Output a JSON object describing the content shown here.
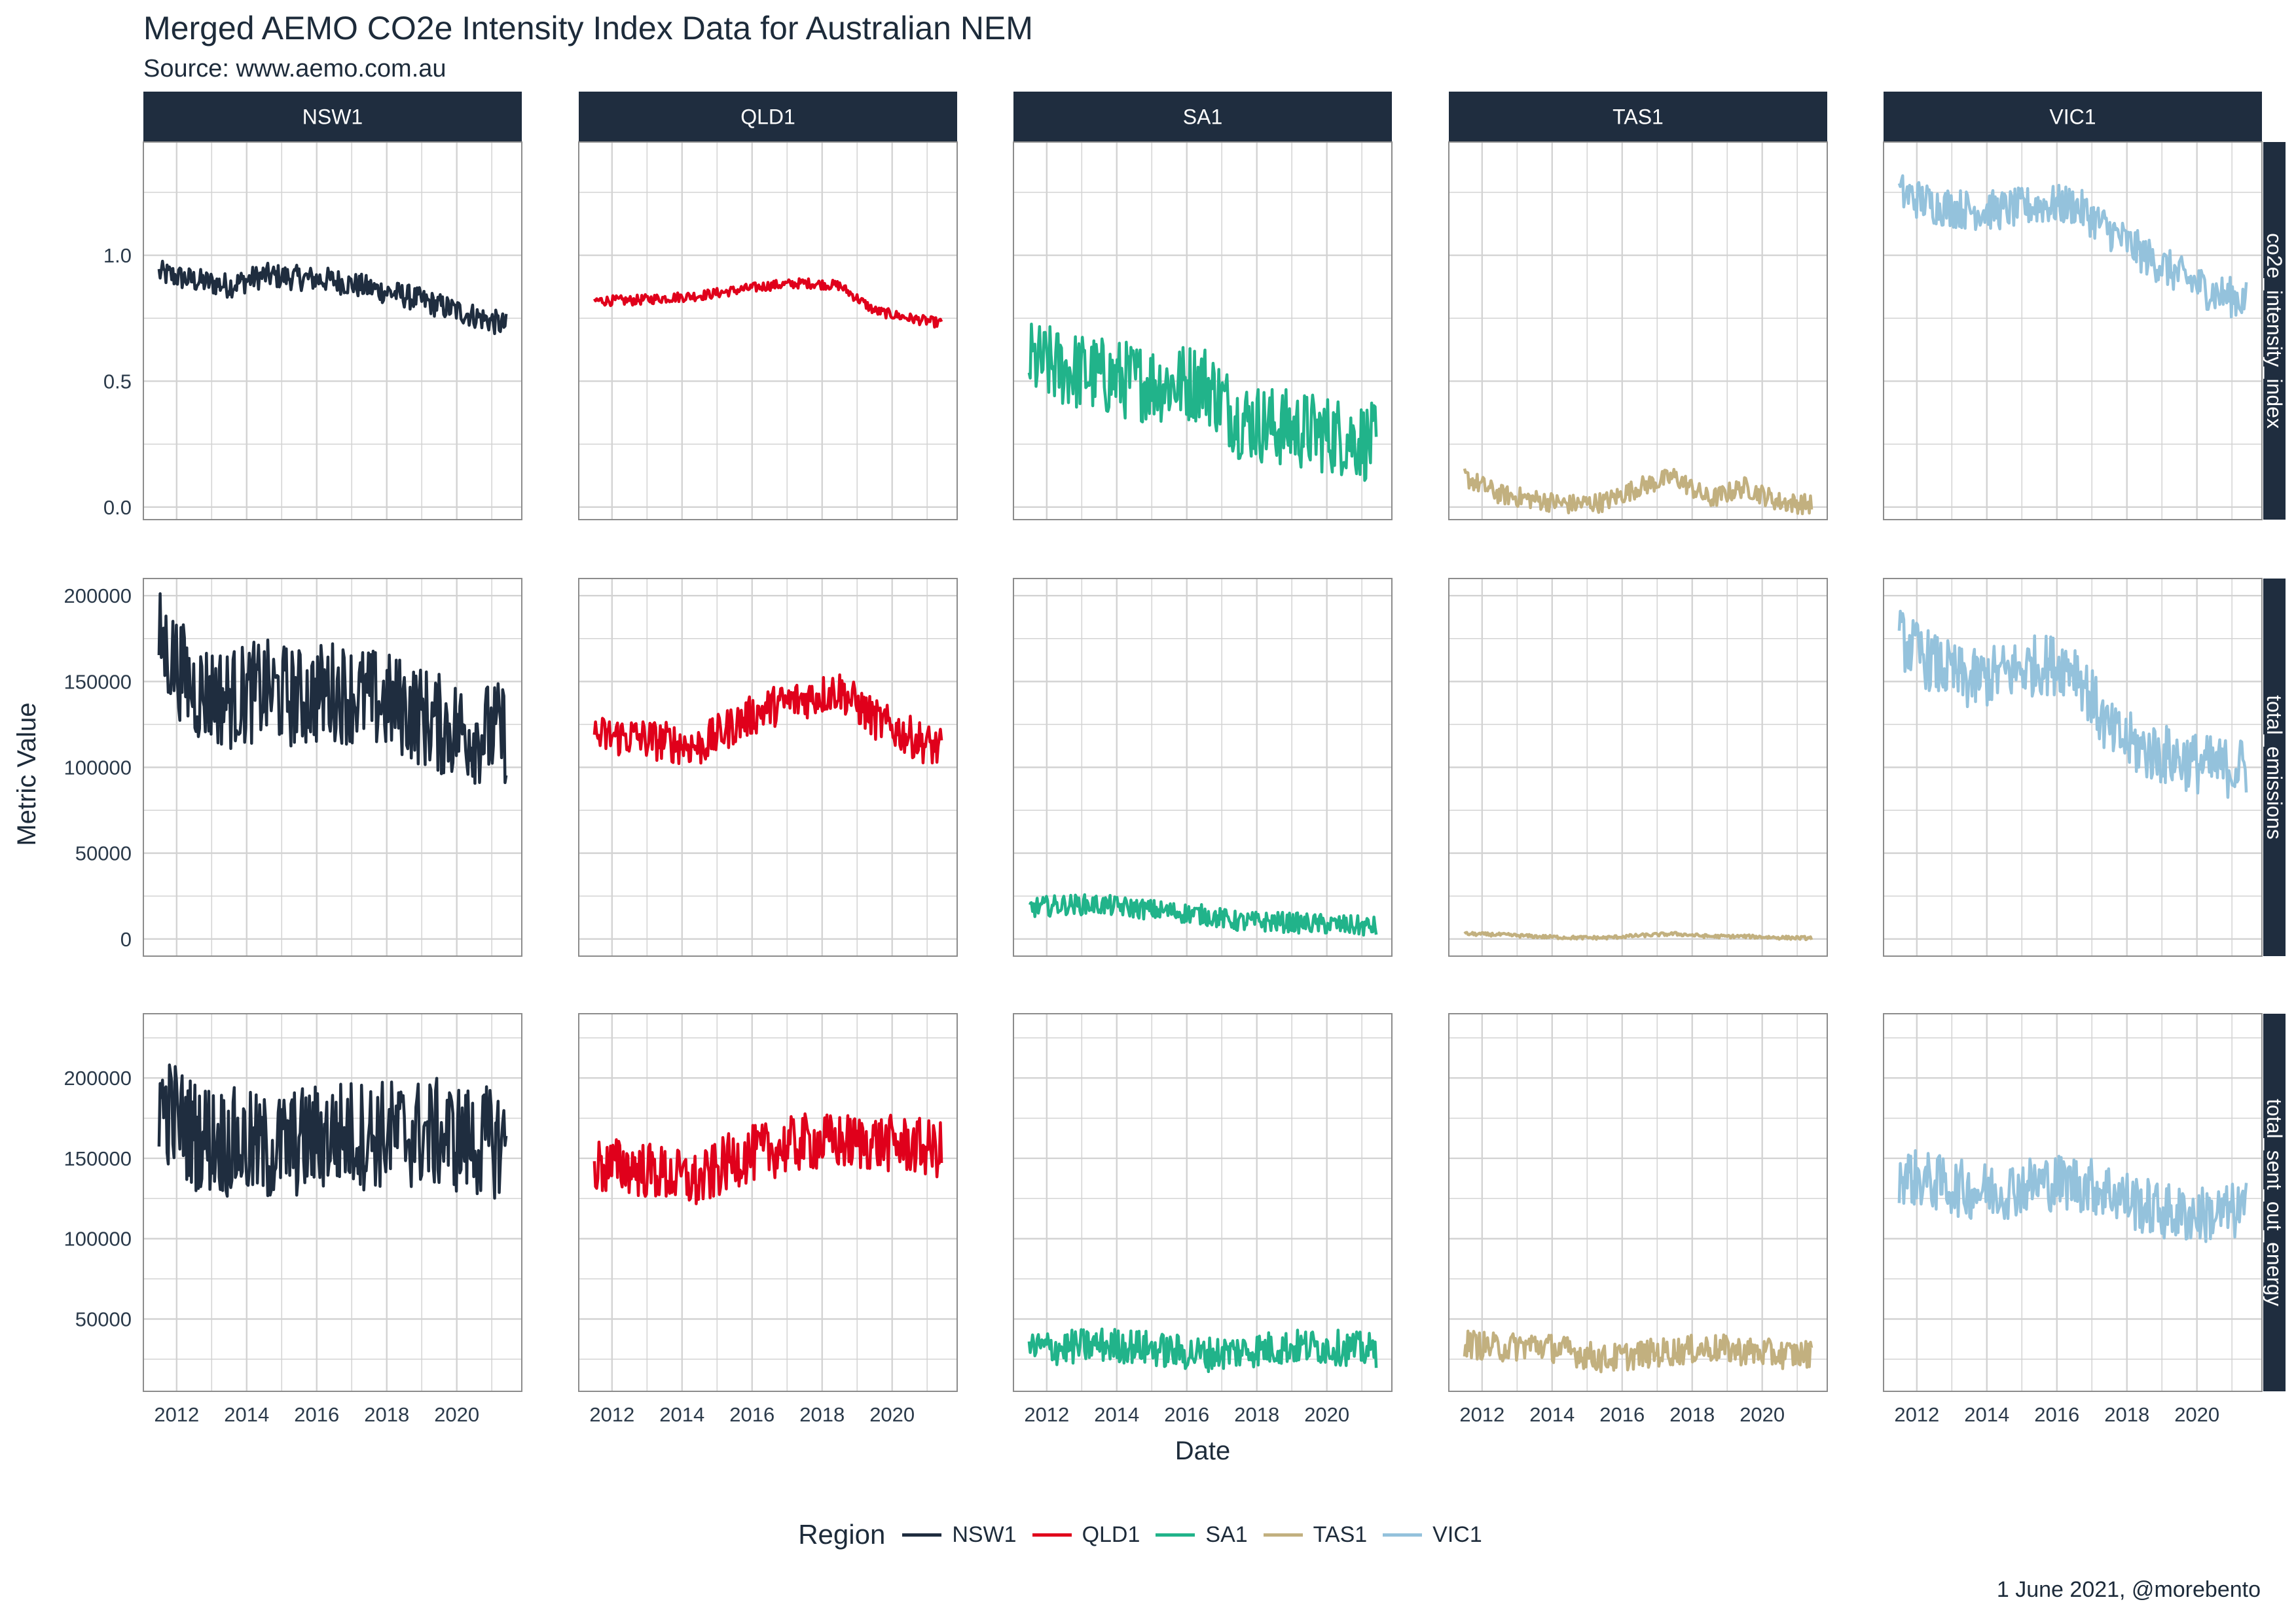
{
  "title": "Merged AEMO CO2e Intensity Index Data for Australian NEM",
  "subtitle": "Source: www.aemo.com.au",
  "caption": "1 June 2021, @morebento",
  "colors": {
    "NSW1": "#1f2d3f",
    "QLD1": "#e0001b",
    "SA1": "#21b38a",
    "TAS1": "#c2b07f",
    "VIC1": "#94c2dc",
    "strip_bg": "#1f2d3f",
    "strip_text": "#ffffff",
    "grid": "#d3d3d3",
    "panel_border": "#8c8c8c",
    "text": "#1d2b3a"
  },
  "legend": {
    "title": "Region",
    "items": [
      "NSW1",
      "QLD1",
      "SA1",
      "TAS1",
      "VIC1"
    ],
    "position": "bottom"
  },
  "chart_data": {
    "type": "line",
    "faceted": true,
    "xlabel": "Date",
    "ylabel": "Metric Value",
    "x_range": [
      "2011-07-01",
      "2021-05-31"
    ],
    "x_ticks": [
      "2012",
      "2014",
      "2016",
      "2018",
      "2020"
    ],
    "grid": true,
    "columns": [
      "NSW1",
      "QLD1",
      "SA1",
      "TAS1",
      "VIC1"
    ],
    "rows": [
      {
        "label": "co2e_intensity_index",
        "ylim": [
          -0.05,
          1.45
        ],
        "y_ticks": [
          0.0,
          0.5,
          1.0
        ],
        "y_tick_labels": [
          "0.0",
          "0.5",
          "1.0"
        ],
        "series": [
          {
            "name": "NSW1",
            "x": [
              "2011-07-01",
              "2012-07-01",
              "2013-07-01",
              "2014-07-01",
              "2015-07-01",
              "2016-07-01",
              "2017-07-01",
              "2018-07-01",
              "2019-07-01",
              "2020-07-01",
              "2021-05-31"
            ],
            "y": [
              0.93,
              0.9,
              0.88,
              0.92,
              0.91,
              0.9,
              0.87,
              0.84,
              0.8,
              0.76,
              0.72
            ],
            "spread": 0.05
          },
          {
            "name": "QLD1",
            "x": [
              "2011-07-01",
              "2012-07-01",
              "2013-07-01",
              "2014-07-01",
              "2015-07-01",
              "2016-07-01",
              "2017-07-01",
              "2018-07-01",
              "2019-07-01",
              "2020-07-01",
              "2021-05-31"
            ],
            "y": [
              0.82,
              0.82,
              0.83,
              0.84,
              0.86,
              0.88,
              0.89,
              0.88,
              0.78,
              0.75,
              0.73
            ],
            "spread": 0.02
          },
          {
            "name": "SA1",
            "x": [
              "2011-07-01",
              "2012-07-01",
              "2013-07-01",
              "2014-07-01",
              "2015-07-01",
              "2016-07-01",
              "2017-07-01",
              "2018-07-01",
              "2019-07-01",
              "2020-07-01",
              "2021-05-31"
            ],
            "y": [
              0.58,
              0.55,
              0.52,
              0.5,
              0.49,
              0.5,
              0.35,
              0.32,
              0.3,
              0.28,
              0.25
            ],
            "spread": 0.16
          },
          {
            "name": "TAS1",
            "x": [
              "2011-07-01",
              "2012-07-01",
              "2013-07-01",
              "2014-07-01",
              "2015-07-01",
              "2016-07-01",
              "2017-07-01",
              "2018-07-01",
              "2019-07-01",
              "2020-07-01",
              "2021-05-31"
            ],
            "y": [
              0.12,
              0.05,
              0.03,
              0.01,
              0.02,
              0.08,
              0.12,
              0.03,
              0.08,
              0.02,
              0.01
            ],
            "spread": 0.04
          },
          {
            "name": "VIC1",
            "x": [
              "2011-07-01",
              "2012-07-01",
              "2013-07-01",
              "2014-07-01",
              "2015-07-01",
              "2016-07-01",
              "2017-07-01",
              "2018-07-01",
              "2019-07-01",
              "2020-07-01",
              "2021-05-31"
            ],
            "y": [
              1.25,
              1.2,
              1.18,
              1.18,
              1.2,
              1.2,
              1.1,
              1.0,
              0.92,
              0.85,
              0.82
            ],
            "spread": 0.08
          }
        ]
      },
      {
        "label": "total_emissions",
        "ylim": [
          -10000,
          210000
        ],
        "y_ticks": [
          0,
          50000,
          100000,
          150000,
          200000
        ],
        "y_tick_labels": [
          "0",
          "50000",
          "100000",
          "150000",
          "200000"
        ],
        "series": [
          {
            "name": "NSW1",
            "x": [
              "2011-07-01",
              "2012-07-01",
              "2013-07-01",
              "2014-07-01",
              "2015-07-01",
              "2016-07-01",
              "2017-07-01",
              "2018-07-01",
              "2019-07-01",
              "2020-07-01",
              "2021-05-31"
            ],
            "y": [
              175000,
              145000,
              140000,
              145000,
              140000,
              145000,
              140000,
              135000,
              125000,
              120000,
              120000
            ],
            "spread": 30000
          },
          {
            "name": "QLD1",
            "x": [
              "2011-07-01",
              "2012-07-01",
              "2013-07-01",
              "2014-07-01",
              "2015-07-01",
              "2016-07-01",
              "2017-07-01",
              "2018-07-01",
              "2019-07-01",
              "2020-07-01",
              "2021-05-31"
            ],
            "y": [
              118000,
              118000,
              115000,
              112000,
              125000,
              135000,
              140000,
              145000,
              128000,
              118000,
              110000
            ],
            "spread": 12000
          },
          {
            "name": "SA1",
            "x": [
              "2011-07-01",
              "2012-07-01",
              "2013-07-01",
              "2014-07-01",
              "2015-07-01",
              "2016-07-01",
              "2017-07-01",
              "2018-07-01",
              "2019-07-01",
              "2020-07-01",
              "2021-05-31"
            ],
            "y": [
              18000,
              20000,
              20000,
              18000,
              16000,
              14000,
              10000,
              10000,
              9000,
              8000,
              7000
            ],
            "spread": 6000
          },
          {
            "name": "TAS1",
            "x": [
              "2011-07-01",
              "2012-07-01",
              "2013-07-01",
              "2014-07-01",
              "2015-07-01",
              "2016-07-01",
              "2017-07-01",
              "2018-07-01",
              "2019-07-01",
              "2020-07-01",
              "2021-05-31"
            ],
            "y": [
              3000,
              2500,
              1500,
              800,
              700,
              2000,
              3000,
              1500,
              1500,
              800,
              500
            ],
            "spread": 1000
          },
          {
            "name": "VIC1",
            "x": [
              "2011-07-01",
              "2012-07-01",
              "2013-07-01",
              "2014-07-01",
              "2015-07-01",
              "2016-07-01",
              "2017-07-01",
              "2018-07-01",
              "2019-07-01",
              "2020-07-01",
              "2021-05-31"
            ],
            "y": [
              175000,
              160000,
              150000,
              155000,
              160000,
              160000,
              120000,
              110000,
              105000,
              100000,
              100000
            ],
            "spread": 18000
          }
        ]
      },
      {
        "label": "total_sent_out_energy",
        "ylim": [
          5000,
          240000
        ],
        "y_ticks": [
          50000,
          100000,
          150000,
          200000
        ],
        "y_tick_labels": [
          "50000",
          "100000",
          "150000",
          "200000"
        ],
        "series": [
          {
            "name": "NSW1",
            "x": [
              "2011-07-01",
              "2012-07-01",
              "2013-07-01",
              "2014-07-01",
              "2015-07-01",
              "2016-07-01",
              "2017-07-01",
              "2018-07-01",
              "2019-07-01",
              "2020-07-01",
              "2021-05-31"
            ],
            "y": [
              185000,
              165000,
              160000,
              155000,
              160000,
              165000,
              165000,
              165000,
              165000,
              160000,
              160000
            ],
            "spread": 35000
          },
          {
            "name": "QLD1",
            "x": [
              "2011-07-01",
              "2012-07-01",
              "2013-07-01",
              "2014-07-01",
              "2015-07-01",
              "2016-07-01",
              "2017-07-01",
              "2018-07-01",
              "2019-07-01",
              "2020-07-01",
              "2021-05-31"
            ],
            "y": [
              145000,
              145000,
              140000,
              135000,
              150000,
              155000,
              160000,
              160000,
              160000,
              158000,
              155000
            ],
            "spread": 18000
          },
          {
            "name": "SA1",
            "x": [
              "2011-07-01",
              "2012-07-01",
              "2013-07-01",
              "2014-07-01",
              "2015-07-01",
              "2016-07-01",
              "2017-07-01",
              "2018-07-01",
              "2019-07-01",
              "2020-07-01",
              "2021-05-31"
            ],
            "y": [
              32000,
              32000,
              34000,
              33000,
              30000,
              28000,
              30000,
              32000,
              33000,
              32000,
              30000
            ],
            "spread": 11000
          },
          {
            "name": "TAS1",
            "x": [
              "2011-07-01",
              "2012-07-01",
              "2013-07-01",
              "2014-07-01",
              "2015-07-01",
              "2016-07-01",
              "2017-07-01",
              "2018-07-01",
              "2019-07-01",
              "2020-07-01",
              "2021-05-31"
            ],
            "y": [
              35000,
              32000,
              34000,
              30000,
              25000,
              28000,
              30000,
              32000,
              30000,
              28000,
              28000
            ],
            "spread": 9000
          },
          {
            "name": "VIC1",
            "x": [
              "2011-07-01",
              "2012-07-01",
              "2013-07-01",
              "2014-07-01",
              "2015-07-01",
              "2016-07-01",
              "2017-07-01",
              "2018-07-01",
              "2019-07-01",
              "2020-07-01",
              "2021-05-31"
            ],
            "y": [
              140000,
              135000,
              130000,
              130000,
              135000,
              135000,
              130000,
              120000,
              115000,
              115000,
              118000
            ],
            "spread": 18000
          }
        ]
      }
    ]
  }
}
